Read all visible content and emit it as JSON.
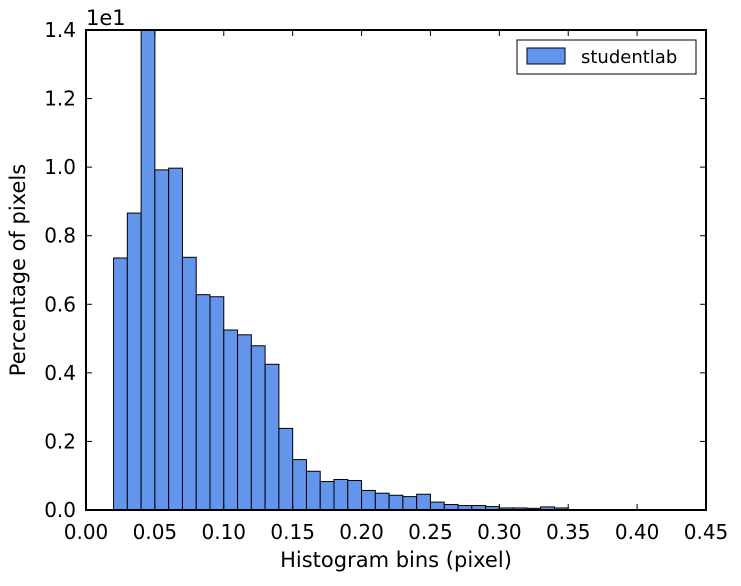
{
  "chart_data": {
    "type": "bar",
    "xlabel": "Histogram bins (pixel)",
    "ylabel": "Percentage of pixels",
    "offset_label": "1e1",
    "xlim": [
      0.0,
      0.45
    ],
    "ylim": [
      0.0,
      1.4
    ],
    "grid": false,
    "legend_position": "top-right",
    "bin_width": 0.01,
    "x_ticks": [
      0.0,
      0.05,
      0.1,
      0.15,
      0.2,
      0.25,
      0.3,
      0.35,
      0.4,
      0.45
    ],
    "x_tick_labels": [
      "0.00",
      "0.05",
      "0.10",
      "0.15",
      "0.20",
      "0.25",
      "0.30",
      "0.35",
      "0.40",
      "0.45"
    ],
    "y_ticks": [
      0.0,
      0.2,
      0.4,
      0.6,
      0.8,
      1.0,
      1.2,
      1.4
    ],
    "y_tick_labels": [
      "0.0",
      "0.2",
      "0.4",
      "0.6",
      "0.8",
      "1.0",
      "1.2",
      "1.4"
    ],
    "series": [
      {
        "name": "studentlab",
        "color": "#6495ed",
        "edge_color": "#000000",
        "bins": [
          {
            "x0": 0.02,
            "value": 0.735
          },
          {
            "x0": 0.03,
            "value": 0.866
          },
          {
            "x0": 0.04,
            "value": 1.4
          },
          {
            "x0": 0.05,
            "value": 0.992
          },
          {
            "x0": 0.06,
            "value": 0.997
          },
          {
            "x0": 0.07,
            "value": 0.737
          },
          {
            "x0": 0.08,
            "value": 0.628
          },
          {
            "x0": 0.09,
            "value": 0.622
          },
          {
            "x0": 0.1,
            "value": 0.525
          },
          {
            "x0": 0.11,
            "value": 0.511
          },
          {
            "x0": 0.12,
            "value": 0.479
          },
          {
            "x0": 0.13,
            "value": 0.425
          },
          {
            "x0": 0.14,
            "value": 0.238
          },
          {
            "x0": 0.15,
            "value": 0.147
          },
          {
            "x0": 0.16,
            "value": 0.113
          },
          {
            "x0": 0.17,
            "value": 0.083
          },
          {
            "x0": 0.18,
            "value": 0.089
          },
          {
            "x0": 0.19,
            "value": 0.086
          },
          {
            "x0": 0.2,
            "value": 0.057
          },
          {
            "x0": 0.21,
            "value": 0.049
          },
          {
            "x0": 0.22,
            "value": 0.043
          },
          {
            "x0": 0.23,
            "value": 0.039
          },
          {
            "x0": 0.24,
            "value": 0.046
          },
          {
            "x0": 0.25,
            "value": 0.023
          },
          {
            "x0": 0.26,
            "value": 0.016
          },
          {
            "x0": 0.27,
            "value": 0.013
          },
          {
            "x0": 0.28,
            "value": 0.013
          },
          {
            "x0": 0.29,
            "value": 0.01
          },
          {
            "x0": 0.3,
            "value": 0.006
          },
          {
            "x0": 0.31,
            "value": 0.006
          },
          {
            "x0": 0.32,
            "value": 0.005
          },
          {
            "x0": 0.33,
            "value": 0.009
          },
          {
            "x0": 0.34,
            "value": 0.006
          }
        ]
      }
    ]
  }
}
